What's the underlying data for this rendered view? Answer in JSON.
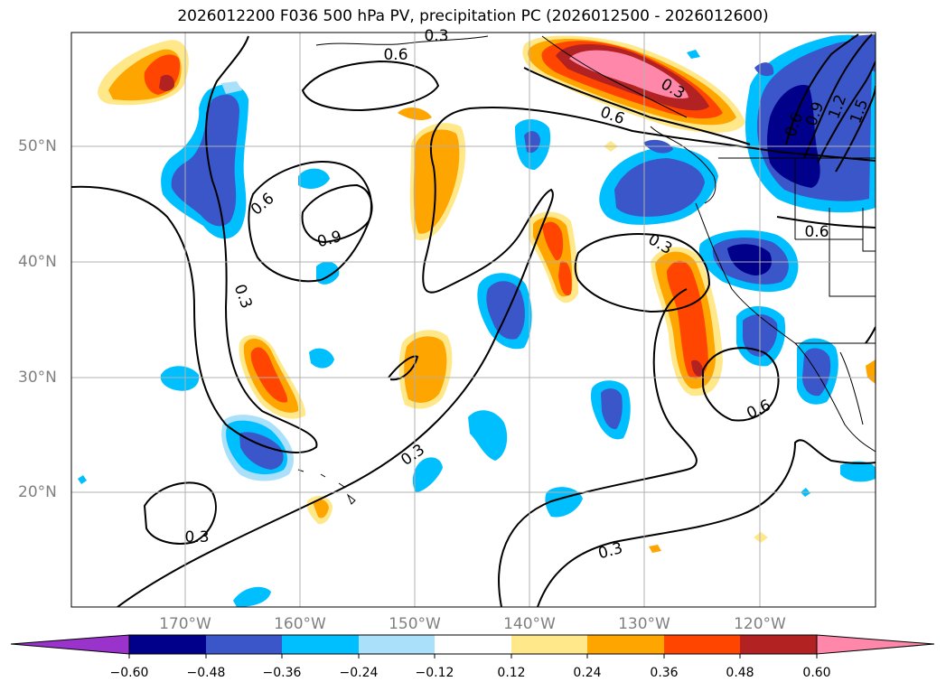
{
  "title": "2026012200 F036 500 hPa PV, precipitation PC (2026012500 - 2026012600)",
  "lat_labels": [
    "50°N",
    "40°N",
    "30°N",
    "20°N"
  ],
  "lon_labels": [
    "170°W",
    "160°W",
    "150°W",
    "140°W",
    "130°W",
    "120°W"
  ],
  "contour_labels": [
    "0.3",
    "0.6",
    "0.9",
    "0.3",
    "0.6",
    "0.3",
    "0.3",
    "0.6",
    "0.3",
    "0.3",
    "0.6",
    "0.9",
    "1.2",
    "1.5",
    "0.6",
    "0.3",
    "0.6"
  ],
  "colorbar": {
    "ticks": [
      "−0.60",
      "−0.48",
      "−0.36",
      "−0.24",
      "−0.12",
      "0.12",
      "0.24",
      "0.36",
      "0.48",
      "0.60"
    ],
    "colors": [
      "#9933cc",
      "#00008b",
      "#3a56c8",
      "#00bfff",
      "#aae0fa",
      "#ffffff",
      "#ffe88a",
      "#ffa500",
      "#ff4500",
      "#b22222",
      "#ff88aa"
    ]
  }
}
